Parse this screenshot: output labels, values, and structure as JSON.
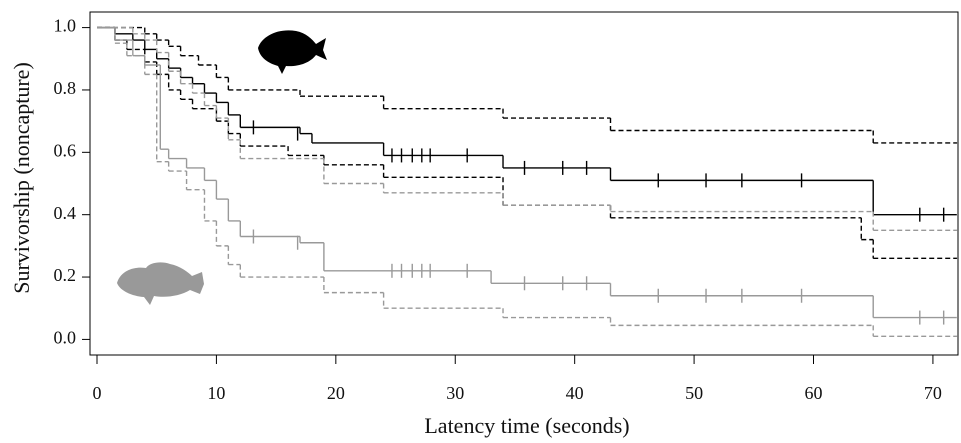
{
  "chart_data": {
    "type": "step",
    "xlabel": "Latency time (seconds)",
    "ylabel": "Survivorship (noncapture)",
    "xlim": [
      0,
      72.1
    ],
    "ylim": [
      -0.05,
      1.05
    ],
    "xticks": [
      0,
      10,
      20,
      30,
      40,
      50,
      60,
      70
    ],
    "yticks": [
      {
        "value": 0,
        "label": "0.0"
      },
      0.2,
      0.4,
      0.6,
      0.8,
      {
        "value": 1,
        "label": "1.0"
      }
    ],
    "series": [
      {
        "color": "#000000",
        "dashed": false,
        "x": [
          0,
          1.5,
          3,
          4,
          5,
          6,
          7,
          8,
          9,
          10,
          11,
          12,
          17,
          18,
          24,
          34,
          43,
          65,
          72
        ],
        "y": [
          1.0,
          0.98,
          0.96,
          0.93,
          0.9,
          0.87,
          0.84,
          0.82,
          0.79,
          0.76,
          0.72,
          0.68,
          0.66,
          0.63,
          0.59,
          0.55,
          0.51,
          0.4,
          0.4
        ],
        "censored": {
          "x": [
            13.1,
            16.8,
            24.7,
            25.5,
            26.4,
            27.2,
            27.9,
            31,
            35.8,
            39,
            41,
            47,
            51,
            54,
            59,
            68.9,
            70.9
          ],
          "y": [
            0.68,
            0.66,
            0.59,
            0.59,
            0.59,
            0.59,
            0.59,
            0.59,
            0.55,
            0.55,
            0.55,
            0.51,
            0.51,
            0.51,
            0.51,
            0.4,
            0.4
          ]
        }
      },
      {
        "color": "#000000",
        "dashed": true,
        "x": [
          0,
          4,
          5,
          6,
          7,
          8.5,
          10,
          11,
          17,
          24,
          34,
          43,
          65,
          72
        ],
        "y": [
          1.0,
          0.98,
          0.96,
          0.94,
          0.91,
          0.88,
          0.84,
          0.8,
          0.78,
          0.74,
          0.71,
          0.67,
          0.63,
          0.63
        ]
      },
      {
        "color": "#000000",
        "dashed": true,
        "x": [
          0,
          1.5,
          2.5,
          4,
          5,
          6,
          7,
          8,
          10,
          11,
          12,
          16,
          19,
          24,
          34,
          43,
          64,
          65,
          72
        ],
        "y": [
          1.0,
          0.96,
          0.93,
          0.89,
          0.85,
          0.8,
          0.77,
          0.74,
          0.7,
          0.66,
          0.62,
          0.59,
          0.56,
          0.52,
          0.43,
          0.39,
          0.32,
          0.26,
          0.26
        ]
      },
      {
        "color": "#999999",
        "dashed": false,
        "x": [
          0,
          1.5,
          3,
          4,
          5.3,
          6,
          7.5,
          9,
          10,
          11,
          12,
          17,
          19,
          33,
          43,
          65,
          72
        ],
        "y": [
          1.0,
          0.96,
          0.91,
          0.88,
          0.61,
          0.58,
          0.55,
          0.51,
          0.45,
          0.38,
          0.33,
          0.31,
          0.22,
          0.18,
          0.14,
          0.07,
          0.07
        ],
        "censored": {
          "x": [
            13.1,
            16.8,
            24.7,
            25.5,
            26.4,
            27.2,
            27.9,
            31,
            35.8,
            39,
            41,
            47,
            51,
            54,
            59,
            68.9,
            70.9
          ],
          "y": [
            0.33,
            0.31,
            0.22,
            0.22,
            0.22,
            0.22,
            0.22,
            0.22,
            0.18,
            0.18,
            0.18,
            0.14,
            0.14,
            0.14,
            0.14,
            0.07,
            0.07
          ]
        }
      },
      {
        "color": "#999999",
        "dashed": true,
        "x": [
          0,
          3,
          4,
          5,
          6,
          7,
          8,
          9,
          10,
          11,
          12,
          19,
          24,
          34,
          43,
          65,
          72
        ],
        "y": [
          1.0,
          0.98,
          0.96,
          0.92,
          0.86,
          0.82,
          0.79,
          0.75,
          0.71,
          0.64,
          0.58,
          0.5,
          0.47,
          0.43,
          0.41,
          0.35,
          0.35
        ]
      },
      {
        "color": "#999999",
        "dashed": true,
        "x": [
          0,
          1.5,
          2.5,
          4,
          5,
          6,
          7.5,
          9,
          10,
          11,
          12,
          19,
          24,
          34,
          43,
          65,
          72
        ],
        "y": [
          1.0,
          0.95,
          0.91,
          0.85,
          0.57,
          0.54,
          0.48,
          0.38,
          0.3,
          0.24,
          0.2,
          0.15,
          0.1,
          0.07,
          0.045,
          0.01,
          0.01
        ]
      }
    ]
  }
}
